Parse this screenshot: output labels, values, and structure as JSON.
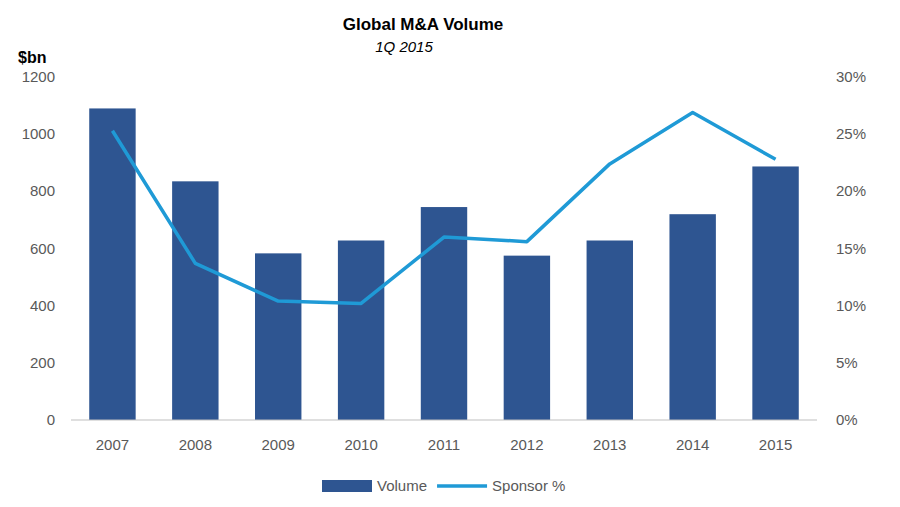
{
  "chart_data": {
    "type": "bar",
    "title": "Global M&A Volume",
    "subtitle": "1Q 2015",
    "y_label": "$bn",
    "categories": [
      "2007",
      "2008",
      "2009",
      "2010",
      "2011",
      "2012",
      "2013",
      "2014",
      "2015"
    ],
    "series": [
      {
        "name": "Volume",
        "type": "bar",
        "color": "#2e5591",
        "values": [
          1090,
          835,
          583,
          628,
          745,
          575,
          628,
          720,
          887
        ]
      },
      {
        "name": "Sponsor %",
        "type": "line",
        "color": "#1f9ad6",
        "axis": "y2",
        "values": [
          25.3,
          13.7,
          10.4,
          10.2,
          16.0,
          15.6,
          22.4,
          26.9,
          22.8
        ]
      }
    ],
    "ylim": [
      0,
      1200
    ],
    "yticks": [
      0,
      200,
      400,
      600,
      800,
      1000,
      1200
    ],
    "y2lim": [
      0,
      30
    ],
    "y2ticks": [
      {
        "value": 0,
        "label": "0%"
      },
      {
        "value": 5,
        "label": "5%"
      },
      {
        "value": 10,
        "label": "10%"
      },
      {
        "value": 15,
        "label": "15%"
      },
      {
        "value": 20,
        "label": "20%"
      },
      {
        "value": 25,
        "label": "25%"
      },
      {
        "value": 30,
        "label": "30%"
      }
    ],
    "grid": false,
    "legend": "bottom"
  }
}
